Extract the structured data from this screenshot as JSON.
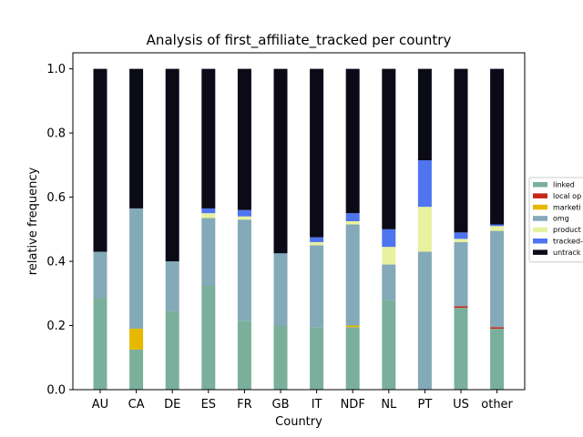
{
  "chart_data": {
    "type": "bar",
    "stacked": true,
    "title": "Analysis of first_affiliate_tracked per country",
    "xlabel": "Country",
    "ylabel": "relative frequency",
    "ylim": [
      0,
      1.05
    ],
    "yticks": [
      "0.0",
      "0.2",
      "0.4",
      "0.6",
      "0.8",
      "1.0"
    ],
    "categories": [
      "AU",
      "CA",
      "DE",
      "ES",
      "FR",
      "GB",
      "IT",
      "NDF",
      "NL",
      "PT",
      "US",
      "other"
    ],
    "legend_position": "right, outside plot",
    "series": [
      {
        "name": "linked",
        "color": "#7ab09b",
        "values": [
          0.285,
          0.125,
          0.245,
          0.325,
          0.215,
          0.2,
          0.195,
          0.195,
          0.28,
          0.0,
          0.255,
          0.19
        ]
      },
      {
        "name": "local ops",
        "color": "#c8261a",
        "values": [
          0.0,
          0.0,
          0.0,
          0.0,
          0.0,
          0.0,
          0.0,
          0.0,
          0.0,
          0.0,
          0.005,
          0.005
        ]
      },
      {
        "name": "marketing",
        "color": "#e6b800",
        "values": [
          0.0,
          0.065,
          0.0,
          0.0,
          0.0,
          0.0,
          0.0,
          0.005,
          0.0,
          0.0,
          0.0,
          0.0
        ]
      },
      {
        "name": "omg",
        "color": "#84a9b8",
        "values": [
          0.145,
          0.375,
          0.155,
          0.21,
          0.315,
          0.225,
          0.255,
          0.315,
          0.11,
          0.43,
          0.2,
          0.3
        ]
      },
      {
        "name": "product",
        "color": "#e8f29e",
        "values": [
          0.0,
          0.0,
          0.0,
          0.015,
          0.01,
          0.0,
          0.01,
          0.01,
          0.055,
          0.14,
          0.01,
          0.015
        ]
      },
      {
        "name": "tracked-other",
        "color": "#4e74f0",
        "values": [
          0.0,
          0.0,
          0.0,
          0.015,
          0.02,
          0.0,
          0.015,
          0.025,
          0.055,
          0.145,
          0.02,
          0.005
        ]
      },
      {
        "name": "untracked",
        "color": "#0b0b18",
        "values": [
          0.57,
          0.435,
          0.6,
          0.435,
          0.44,
          0.575,
          0.525,
          0.45,
          0.5,
          0.285,
          0.51,
          0.485
        ]
      }
    ],
    "legend_labels": [
      "linked",
      "local op",
      "marketi",
      "omg",
      "product",
      "tracked-",
      "untrack"
    ]
  }
}
